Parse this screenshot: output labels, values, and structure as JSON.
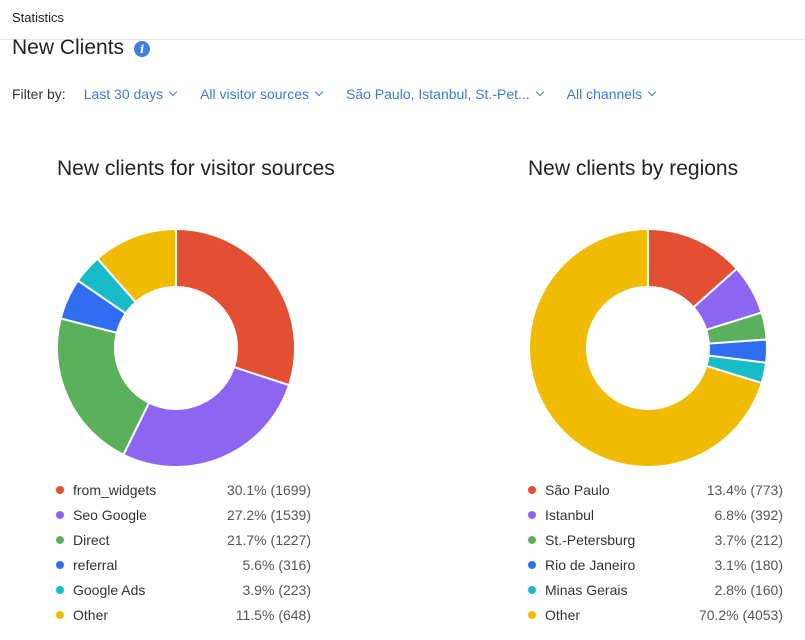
{
  "header": {
    "breadcrumb": "Statistics",
    "title": "New Clients"
  },
  "filters": {
    "label": "Filter by:",
    "items": [
      {
        "label": "Last 30 days"
      },
      {
        "label": "All visitor sources"
      },
      {
        "label": "São Paulo, Istanbul, St.-Pet..."
      },
      {
        "label": "All channels"
      }
    ]
  },
  "chart_data": [
    {
      "type": "pie",
      "title": "New clients for visitor sources",
      "series": [
        {
          "name": "from_widgets",
          "value": 1699,
          "percent": "30.1%",
          "color": "#e34f32"
        },
        {
          "name": "Seo Google",
          "value": 1539,
          "percent": "27.2%",
          "color": "#8c65f1"
        },
        {
          "name": "Direct",
          "value": 1227,
          "percent": "21.7%",
          "color": "#5bb15b"
        },
        {
          "name": "referral",
          "value": 316,
          "percent": "5.6%",
          "color": "#2f6ef0"
        },
        {
          "name": "Google Ads",
          "value": 223,
          "percent": "3.9%",
          "color": "#17bcc8"
        },
        {
          "name": "Other",
          "value": 648,
          "percent": "11.5%",
          "color": "#f0bb00"
        }
      ]
    },
    {
      "type": "pie",
      "title": "New clients by regions",
      "series": [
        {
          "name": "São Paulo",
          "value": 773,
          "percent": "13.4%",
          "color": "#e34f32"
        },
        {
          "name": "Istanbul",
          "value": 392,
          "percent": "6.8%",
          "color": "#8c65f1"
        },
        {
          "name": "St.-Petersburg",
          "value": 212,
          "percent": "3.7%",
          "color": "#5bb15b"
        },
        {
          "name": "Rio de Janeiro",
          "value": 180,
          "percent": "3.1%",
          "color": "#2f6ef0"
        },
        {
          "name": "Minas Gerais",
          "value": 160,
          "percent": "2.8%",
          "color": "#17bcc8"
        },
        {
          "name": "Other",
          "value": 4053,
          "percent": "70.2%",
          "color": "#f0bb00"
        }
      ]
    }
  ]
}
